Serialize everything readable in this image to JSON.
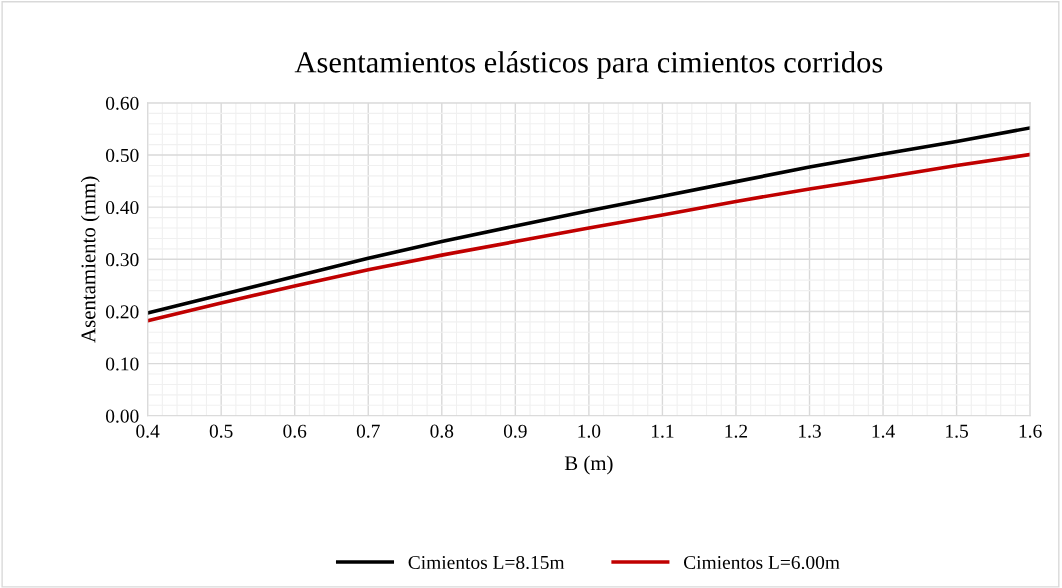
{
  "chart_data": {
    "type": "line",
    "title": "Asentamientos elásticos para cimientos corridos",
    "xlabel": "B (m)",
    "ylabel": "Asentamiento (mm)",
    "x": [
      0.4,
      0.5,
      0.6,
      0.7,
      0.8,
      0.9,
      1.0,
      1.1,
      1.2,
      1.3,
      1.4,
      1.5,
      1.6
    ],
    "series": [
      {
        "name": "Cimientos L=8.15m",
        "color": "#000000",
        "values": [
          0.197,
          0.232,
          0.267,
          0.302,
          0.334,
          0.364,
          0.393,
          0.421,
          0.449,
          0.477,
          0.502,
          0.526,
          0.552
        ]
      },
      {
        "name": "Cimientos L=6.00m",
        "color": "#c00000",
        "values": [
          0.182,
          0.216,
          0.249,
          0.28,
          0.308,
          0.334,
          0.36,
          0.385,
          0.411,
          0.435,
          0.457,
          0.48,
          0.501
        ]
      }
    ],
    "xlim": [
      0.4,
      1.6
    ],
    "xticks": [
      {
        "value": 0.4,
        "label": "0.4"
      },
      {
        "value": 0.5,
        "label": "0.5"
      },
      {
        "value": 0.6,
        "label": "0.6"
      },
      {
        "value": 0.7,
        "label": "0.7"
      },
      {
        "value": 0.8,
        "label": "0.8"
      },
      {
        "value": 0.9,
        "label": "0.9"
      },
      {
        "value": 1.0,
        "label": "1.0"
      },
      {
        "value": 1.1,
        "label": "1.1"
      },
      {
        "value": 1.2,
        "label": "1.2"
      },
      {
        "value": 1.3,
        "label": "1.3"
      },
      {
        "value": 1.4,
        "label": "1.4"
      },
      {
        "value": 1.5,
        "label": "1.5"
      },
      {
        "value": 1.6,
        "label": "1.6"
      }
    ],
    "ylim": [
      0,
      0.6
    ],
    "yticks": [
      {
        "value": 0,
        "label": "0.00"
      },
      {
        "value": 0.1,
        "label": "0.10"
      },
      {
        "value": 0.2,
        "label": "0.20"
      },
      {
        "value": 0.3,
        "label": "0.30"
      },
      {
        "value": 0.4,
        "label": "0.40"
      },
      {
        "value": 0.5,
        "label": "0.50"
      },
      {
        "value": 0.6,
        "label": "0.60"
      }
    ],
    "grid": true,
    "legend": "bottom",
    "line_style": "solid",
    "marker": "none"
  }
}
